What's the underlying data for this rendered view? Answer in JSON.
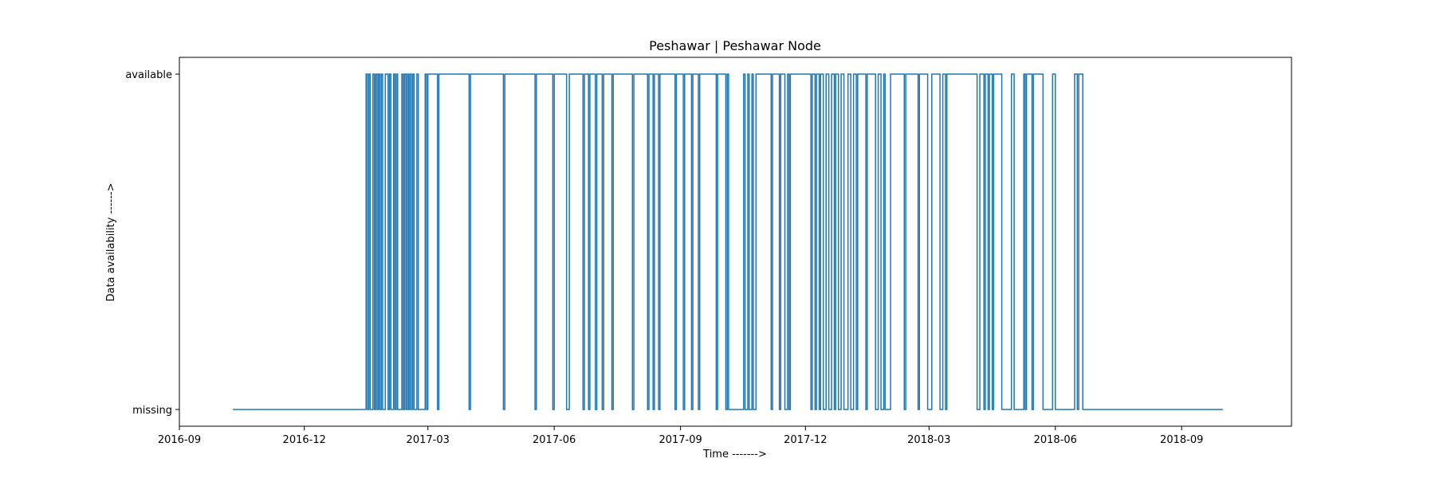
{
  "chart_data": {
    "type": "line",
    "step": true,
    "title": "Peshawar | Peshawar Node",
    "xlabel": "Time ------->",
    "ylabel": "Data availability ------>",
    "xlim": [
      "2016-09-01",
      "2018-11-20"
    ],
    "x_ticks": [
      "2016-09",
      "2016-12",
      "2017-03",
      "2017-06",
      "2017-09",
      "2017-12",
      "2018-03",
      "2018-06",
      "2018-09"
    ],
    "y_categories": [
      "missing",
      "available"
    ],
    "grid": false,
    "line_color": "#1f77b4",
    "series": [
      {
        "values": [
          [
            "2016-10-10",
            0
          ],
          [
            "2017-01-15",
            1
          ],
          [
            "2017-01-16",
            0
          ],
          [
            "2017-01-17",
            1
          ],
          [
            "2017-01-18",
            0
          ],
          [
            "2017-01-20",
            1
          ],
          [
            "2017-01-21",
            0
          ],
          [
            "2017-01-22",
            1
          ],
          [
            "2017-01-23",
            0
          ],
          [
            "2017-01-24",
            1
          ],
          [
            "2017-01-25",
            0
          ],
          [
            "2017-01-26",
            1
          ],
          [
            "2017-01-27",
            0
          ],
          [
            "2017-01-29",
            1
          ],
          [
            "2017-01-31",
            0
          ],
          [
            "2017-02-01",
            1
          ],
          [
            "2017-02-02",
            0
          ],
          [
            "2017-02-04",
            1
          ],
          [
            "2017-02-05",
            0
          ],
          [
            "2017-02-06",
            1
          ],
          [
            "2017-02-07",
            0
          ],
          [
            "2017-02-10",
            1
          ],
          [
            "2017-02-11",
            0
          ],
          [
            "2017-02-12",
            1
          ],
          [
            "2017-02-13",
            0
          ],
          [
            "2017-02-14",
            1
          ],
          [
            "2017-02-15",
            0
          ],
          [
            "2017-02-16",
            1
          ],
          [
            "2017-02-17",
            0
          ],
          [
            "2017-02-18",
            1
          ],
          [
            "2017-02-19",
            0
          ],
          [
            "2017-02-21",
            1
          ],
          [
            "2017-02-22",
            0
          ],
          [
            "2017-02-27",
            1
          ],
          [
            "2017-02-28",
            0
          ],
          [
            "2017-03-01",
            1
          ],
          [
            "2017-03-08",
            0
          ],
          [
            "2017-03-09",
            1
          ],
          [
            "2017-03-31",
            0
          ],
          [
            "2017-04-01",
            1
          ],
          [
            "2017-04-25",
            0
          ],
          [
            "2017-04-26",
            1
          ],
          [
            "2017-05-18",
            0
          ],
          [
            "2017-05-19",
            1
          ],
          [
            "2017-05-31",
            0
          ],
          [
            "2017-06-01",
            1
          ],
          [
            "2017-06-10",
            0
          ],
          [
            "2017-06-12",
            1
          ],
          [
            "2017-06-22",
            0
          ],
          [
            "2017-06-23",
            1
          ],
          [
            "2017-06-26",
            0
          ],
          [
            "2017-06-27",
            1
          ],
          [
            "2017-07-01",
            0
          ],
          [
            "2017-07-02",
            1
          ],
          [
            "2017-07-06",
            0
          ],
          [
            "2017-07-07",
            1
          ],
          [
            "2017-07-13",
            0
          ],
          [
            "2017-07-14",
            1
          ],
          [
            "2017-07-28",
            0
          ],
          [
            "2017-07-29",
            1
          ],
          [
            "2017-08-08",
            0
          ],
          [
            "2017-08-09",
            1
          ],
          [
            "2017-08-12",
            0
          ],
          [
            "2017-08-13",
            1
          ],
          [
            "2017-08-16",
            0
          ],
          [
            "2017-08-17",
            1
          ],
          [
            "2017-08-28",
            0
          ],
          [
            "2017-08-29",
            1
          ],
          [
            "2017-09-03",
            0
          ],
          [
            "2017-09-04",
            1
          ],
          [
            "2017-09-09",
            0
          ],
          [
            "2017-09-10",
            1
          ],
          [
            "2017-09-14",
            0
          ],
          [
            "2017-09-15",
            1
          ],
          [
            "2017-09-27",
            0
          ],
          [
            "2017-09-28",
            1
          ],
          [
            "2017-10-04",
            0
          ],
          [
            "2017-10-05",
            1
          ],
          [
            "2017-10-06",
            0
          ],
          [
            "2017-10-17",
            1
          ],
          [
            "2017-10-18",
            0
          ],
          [
            "2017-10-20",
            1
          ],
          [
            "2017-10-21",
            0
          ],
          [
            "2017-10-23",
            1
          ],
          [
            "2017-10-24",
            0
          ],
          [
            "2017-10-26",
            1
          ],
          [
            "2017-11-06",
            0
          ],
          [
            "2017-11-07",
            1
          ],
          [
            "2017-11-12",
            0
          ],
          [
            "2017-11-13",
            1
          ],
          [
            "2017-11-16",
            0
          ],
          [
            "2017-11-18",
            1
          ],
          [
            "2017-11-19",
            0
          ],
          [
            "2017-11-20",
            1
          ],
          [
            "2017-12-05",
            0
          ],
          [
            "2017-12-06",
            1
          ],
          [
            "2017-12-08",
            0
          ],
          [
            "2017-12-09",
            1
          ],
          [
            "2017-12-11",
            0
          ],
          [
            "2017-12-12",
            1
          ],
          [
            "2017-12-14",
            0
          ],
          [
            "2017-12-16",
            1
          ],
          [
            "2017-12-18",
            0
          ],
          [
            "2017-12-20",
            1
          ],
          [
            "2017-12-22",
            0
          ],
          [
            "2017-12-23",
            1
          ],
          [
            "2017-12-25",
            0
          ],
          [
            "2017-12-27",
            1
          ],
          [
            "2017-12-29",
            0
          ],
          [
            "2018-01-01",
            1
          ],
          [
            "2018-01-03",
            0
          ],
          [
            "2018-01-05",
            1
          ],
          [
            "2018-01-07",
            0
          ],
          [
            "2018-01-08",
            1
          ],
          [
            "2018-01-14",
            0
          ],
          [
            "2018-01-15",
            1
          ],
          [
            "2018-01-21",
            0
          ],
          [
            "2018-01-23",
            1
          ],
          [
            "2018-01-25",
            0
          ],
          [
            "2018-01-27",
            1
          ],
          [
            "2018-01-28",
            0
          ],
          [
            "2018-02-01",
            1
          ],
          [
            "2018-02-11",
            0
          ],
          [
            "2018-02-12",
            1
          ],
          [
            "2018-02-21",
            0
          ],
          [
            "2018-02-22",
            1
          ],
          [
            "2018-02-28",
            0
          ],
          [
            "2018-03-03",
            1
          ],
          [
            "2018-03-09",
            0
          ],
          [
            "2018-03-11",
            1
          ],
          [
            "2018-03-13",
            0
          ],
          [
            "2018-03-14",
            1
          ],
          [
            "2018-04-05",
            0
          ],
          [
            "2018-04-07",
            1
          ],
          [
            "2018-04-10",
            0
          ],
          [
            "2018-04-11",
            1
          ],
          [
            "2018-04-13",
            0
          ],
          [
            "2018-04-14",
            1
          ],
          [
            "2018-04-16",
            0
          ],
          [
            "2018-04-17",
            1
          ],
          [
            "2018-04-23",
            0
          ],
          [
            "2018-04-30",
            1
          ],
          [
            "2018-05-02",
            0
          ],
          [
            "2018-05-09",
            1
          ],
          [
            "2018-05-10",
            0
          ],
          [
            "2018-05-11",
            1
          ],
          [
            "2018-05-15",
            0
          ],
          [
            "2018-05-16",
            1
          ],
          [
            "2018-05-23",
            0
          ],
          [
            "2018-05-30",
            1
          ],
          [
            "2018-06-01",
            0
          ],
          [
            "2018-06-15",
            1
          ],
          [
            "2018-06-17",
            0
          ],
          [
            "2018-06-18",
            1
          ],
          [
            "2018-06-21",
            0
          ],
          [
            "2018-10-01",
            0
          ]
        ]
      }
    ]
  }
}
